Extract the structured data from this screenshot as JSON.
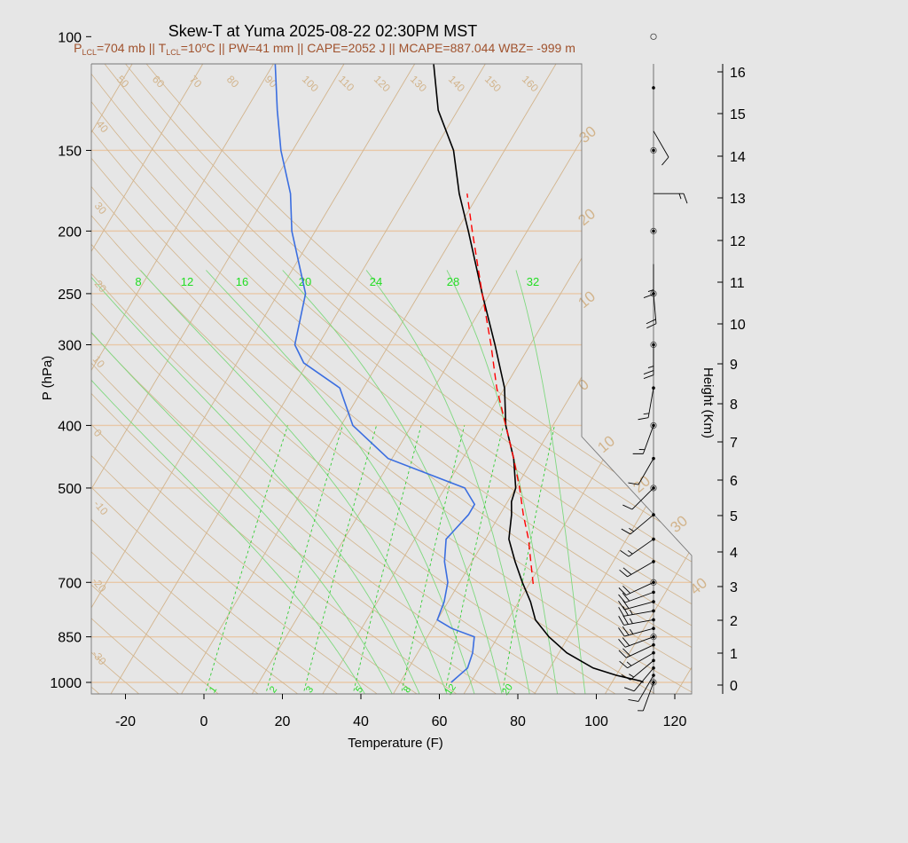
{
  "title": "Skew-T at Yuma 2025-08-22 02:30PM MST",
  "subtitle": {
    "p_lcl": "704 mb",
    "t_lcl": "10",
    "pw": "41 mm",
    "cape": "2052 J",
    "mcape": "887.044",
    "wbz": "-999 m"
  },
  "chart_data": {
    "type": "line",
    "title": "Skew-T at Yuma 2025-08-22 02:30PM MST",
    "xlabel": "Temperature (F)",
    "ylabel": "P (hPa)",
    "y2label": "Height (Km)",
    "x_ticks": [
      -20,
      0,
      20,
      40,
      60,
      80,
      100,
      120
    ],
    "p_ticks": [
      100,
      150,
      200,
      250,
      300,
      400,
      500,
      700,
      850,
      1000
    ],
    "height_ticks": [
      0,
      1,
      2,
      3,
      4,
      5,
      6,
      7,
      8,
      9,
      10,
      11,
      12,
      13,
      14,
      15,
      16
    ],
    "dry_adiabat_labels": [
      50,
      60,
      70,
      80,
      90,
      100,
      110,
      120,
      130,
      140,
      150,
      160
    ],
    "isotherm_labels_left": [
      40,
      30,
      20,
      10,
      0,
      -10,
      -20,
      -30
    ],
    "isotherm_labels_right": [
      30,
      20,
      10,
      0,
      10,
      20,
      30,
      40
    ],
    "moist_adiabat_labels": [
      8,
      12,
      16,
      20,
      24,
      28,
      32
    ],
    "mixing_ratio_labels": [
      1,
      2,
      3,
      5,
      8,
      12,
      20
    ],
    "series": [
      {
        "name": "Temperature",
        "color": "#000000",
        "points": [
          [
            1000,
            112
          ],
          [
            995,
            111
          ],
          [
            975,
            104
          ],
          [
            950,
            97
          ],
          [
            900,
            88
          ],
          [
            850,
            81
          ],
          [
            800,
            75
          ],
          [
            750,
            71
          ],
          [
            700,
            66
          ],
          [
            650,
            61
          ],
          [
            600,
            56
          ],
          [
            550,
            53
          ],
          [
            525,
            51
          ],
          [
            500,
            50
          ],
          [
            450,
            45
          ],
          [
            400,
            38
          ],
          [
            350,
            32
          ],
          [
            300,
            23
          ],
          [
            250,
            12
          ],
          [
            200,
            -1
          ],
          [
            175,
            -9
          ],
          [
            150,
            -17
          ],
          [
            130,
            -27
          ],
          [
            100,
            -40
          ]
        ]
      },
      {
        "name": "Dewpoint",
        "color": "#3b6ee0",
        "points": [
          [
            1000,
            63
          ],
          [
            950,
            65
          ],
          [
            900,
            64
          ],
          [
            850,
            62
          ],
          [
            825,
            55
          ],
          [
            800,
            50
          ],
          [
            750,
            49
          ],
          [
            700,
            47
          ],
          [
            650,
            43
          ],
          [
            600,
            40
          ],
          [
            550,
            42
          ],
          [
            530,
            42
          ],
          [
            500,
            37
          ],
          [
            450,
            13
          ],
          [
            400,
            -1
          ],
          [
            350,
            -10
          ],
          [
            320,
            -23
          ],
          [
            300,
            -28
          ],
          [
            250,
            -33
          ],
          [
            200,
            -46
          ],
          [
            175,
            -52
          ],
          [
            150,
            -61
          ],
          [
            130,
            -68
          ],
          [
            100,
            -80
          ]
        ]
      },
      {
        "name": "Parcel",
        "color": "#ff0000",
        "dash": true,
        "points": [
          [
            704,
            69
          ],
          [
            650,
            65
          ],
          [
            600,
            61
          ],
          [
            550,
            56
          ],
          [
            500,
            51
          ],
          [
            450,
            45
          ],
          [
            400,
            38
          ],
          [
            350,
            30
          ],
          [
            300,
            22
          ],
          [
            250,
            12
          ],
          [
            200,
            0
          ],
          [
            175,
            -7
          ]
        ]
      }
    ],
    "wind_barbs_kt": [
      {
        "p": 1000,
        "dir": 200,
        "spd": 8
      },
      {
        "p": 975,
        "dir": 210,
        "spd": 10
      },
      {
        "p": 950,
        "dir": 220,
        "spd": 12
      },
      {
        "p": 925,
        "dir": 230,
        "spd": 15
      },
      {
        "p": 900,
        "dir": 240,
        "spd": 18
      },
      {
        "p": 875,
        "dir": 245,
        "spd": 20
      },
      {
        "p": 850,
        "dir": 250,
        "spd": 22
      },
      {
        "p": 825,
        "dir": 255,
        "spd": 25
      },
      {
        "p": 800,
        "dir": 260,
        "spd": 28
      },
      {
        "p": 775,
        "dir": 260,
        "spd": 25
      },
      {
        "p": 750,
        "dir": 255,
        "spd": 22
      },
      {
        "p": 725,
        "dir": 250,
        "spd": 20
      },
      {
        "p": 700,
        "dir": 245,
        "spd": 22
      },
      {
        "p": 650,
        "dir": 240,
        "spd": 20
      },
      {
        "p": 600,
        "dir": 235,
        "spd": 18
      },
      {
        "p": 550,
        "dir": 230,
        "spd": 15
      },
      {
        "p": 500,
        "dir": 225,
        "spd": 12
      },
      {
        "p": 450,
        "dir": 210,
        "spd": 12
      },
      {
        "p": 400,
        "dir": 200,
        "spd": 15
      },
      {
        "p": 350,
        "dir": 190,
        "spd": 18
      },
      {
        "p": 300,
        "dir": 180,
        "spd": 25
      },
      {
        "p": 250,
        "dir": 175,
        "spd": 20
      },
      {
        "p": 225,
        "dir": 180,
        "spd": 15
      },
      {
        "p": 175,
        "dir": 90,
        "spd": 15
      },
      {
        "p": 140,
        "dir": 150,
        "spd": 10
      }
    ]
  }
}
